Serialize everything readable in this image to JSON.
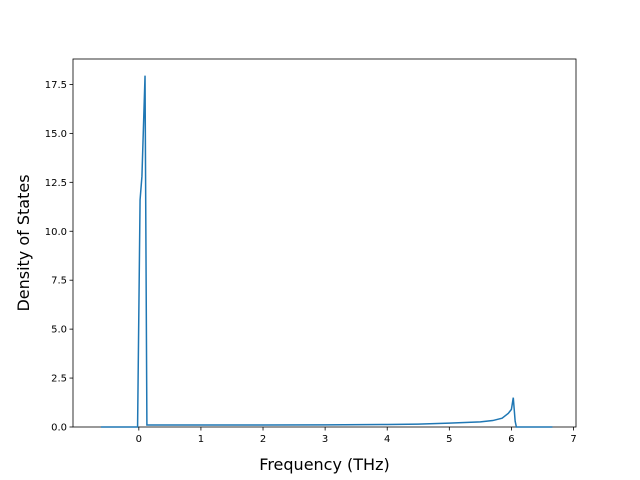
{
  "chart_data": {
    "type": "line",
    "xlabel": "Frequency (THz)",
    "ylabel": "Density of States",
    "x": [
      -0.61,
      -0.02,
      0.02,
      0.05,
      0.1,
      0.13,
      1,
      2,
      3,
      4,
      4.5,
      5,
      5.5,
      5.7,
      5.85,
      5.95,
      6.0,
      6.03,
      6.06,
      6.08,
      6.66
    ],
    "series": [
      {
        "color": "#1f77b4",
        "values": [
          0,
          0,
          11.6,
          12.8,
          17.95,
          0.1,
          0.1,
          0.1,
          0.11,
          0.13,
          0.15,
          0.2,
          0.26,
          0.33,
          0.45,
          0.7,
          0.9,
          1.5,
          0.3,
          0,
          0
        ]
      }
    ],
    "xlim": [
      -1.06,
      7.04
    ],
    "ylim": [
      0,
      18.8
    ],
    "xticks": [
      0,
      1,
      2,
      3,
      4,
      5,
      6,
      7
    ],
    "yticks": [
      {
        "value": 0,
        "label": "0.0"
      },
      {
        "value": 2.5,
        "label": "2.5"
      },
      {
        "value": 5,
        "label": "5.0"
      },
      {
        "value": 7.5,
        "label": "7.5"
      },
      {
        "value": 10,
        "label": "10.0"
      },
      {
        "value": 12.5,
        "label": "12.5"
      },
      {
        "value": 15,
        "label": "15.0"
      },
      {
        "value": 17.5,
        "label": "17.5"
      }
    ]
  }
}
